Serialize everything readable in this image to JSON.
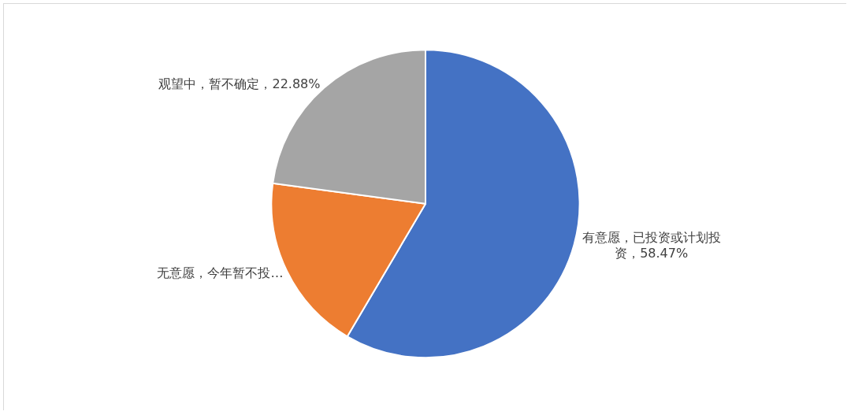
{
  "chart_data": {
    "type": "pie",
    "categories": [
      "有意愿，已投资或计划投资",
      "无意愿，今年暂不投…",
      "观望中，暂不确定"
    ],
    "values": [
      58.47,
      18.65,
      22.88
    ],
    "value_labels": [
      "58.47%",
      null,
      "22.88%"
    ],
    "colors": [
      "#4472c4",
      "#ed7d31",
      "#a5a5a5"
    ]
  }
}
